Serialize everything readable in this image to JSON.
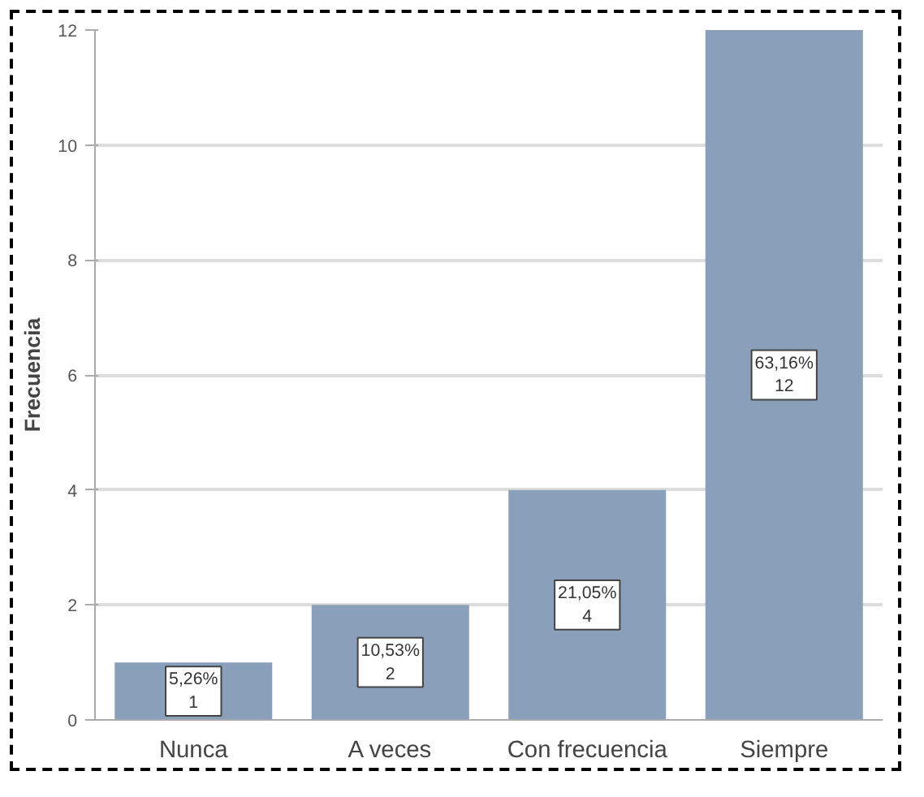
{
  "chart_data": {
    "type": "bar",
    "ylabel": "Frecuencia",
    "categories": [
      "Nunca",
      "A veces",
      "Con frecuencia",
      "Siempre"
    ],
    "values": [
      1,
      2,
      4,
      12
    ],
    "value_labels": [
      "5,26%\n1",
      "10,53%\n2",
      "21,05%\n4",
      "63,16%\n12"
    ],
    "color": "#8a9fba",
    "ylim": [
      0,
      12
    ],
    "yticks": [
      0,
      2,
      4,
      6,
      8,
      10,
      12
    ],
    "grid": "y"
  }
}
